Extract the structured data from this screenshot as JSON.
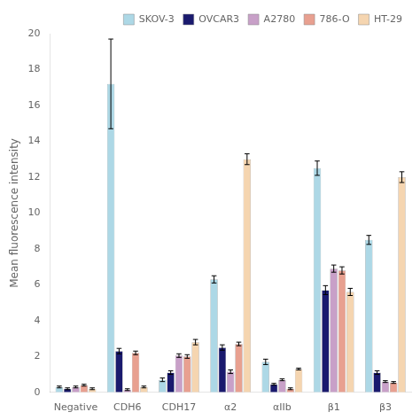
{
  "chart_data": {
    "type": "bar",
    "ylabel": "Mean fluorescence intensity",
    "categories": [
      "Negative",
      "CDH6",
      "CDH17",
      "α2",
      "αIIb",
      "β1",
      "β3"
    ],
    "series": [
      {
        "name": "SKOV-3",
        "color": "#add8e6",
        "values": [
          0.3,
          17.2,
          0.7,
          6.3,
          1.7,
          12.5,
          8.5
        ],
        "errors": [
          0.05,
          2.5,
          0.1,
          0.2,
          0.15,
          0.4,
          0.25
        ]
      },
      {
        "name": "OVCAR3",
        "color": "#1a1a6e",
        "values": [
          0.2,
          2.3,
          1.1,
          2.5,
          0.45,
          5.7,
          1.1
        ],
        "errors": [
          0.05,
          0.15,
          0.1,
          0.15,
          0.05,
          0.25,
          0.1
        ]
      },
      {
        "name": "A2780",
        "color": "#c8a0c8",
        "values": [
          0.3,
          0.15,
          2.05,
          1.15,
          0.7,
          6.9,
          0.6
        ],
        "errors": [
          0.05,
          0.05,
          0.1,
          0.1,
          0.05,
          0.2,
          0.05
        ]
      },
      {
        "name": "786-O",
        "color": "#e8a090",
        "values": [
          0.4,
          2.2,
          2.0,
          2.7,
          0.2,
          6.8,
          0.55
        ],
        "errors": [
          0.05,
          0.1,
          0.1,
          0.1,
          0.05,
          0.2,
          0.05
        ]
      },
      {
        "name": "HT-29",
        "color": "#f5d5b0",
        "values": [
          0.2,
          0.3,
          2.8,
          13.0,
          1.3,
          5.6,
          12.0
        ],
        "errors": [
          0.05,
          0.05,
          0.15,
          0.3,
          0.05,
          0.2,
          0.3
        ]
      }
    ],
    "ylim": [
      0,
      20
    ],
    "yticks": [
      0,
      2,
      4,
      6,
      8,
      10,
      12,
      14,
      16,
      18,
      20
    ],
    "grid": false,
    "legend": "upper right"
  }
}
